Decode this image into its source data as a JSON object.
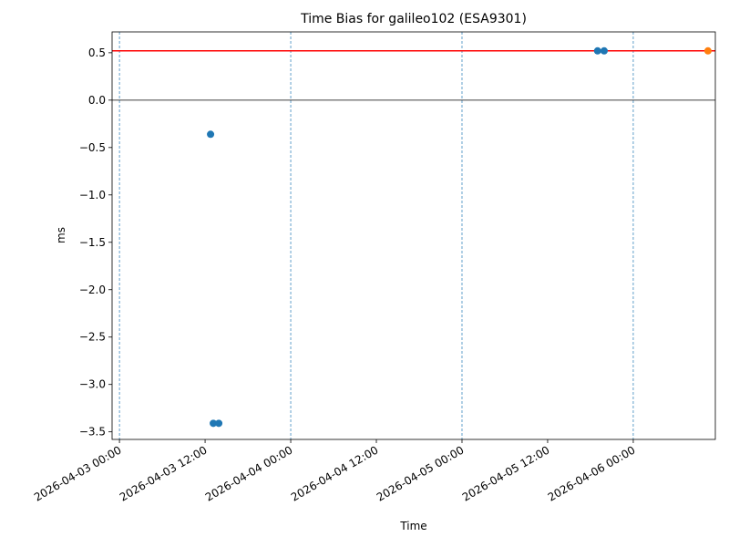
{
  "chart_data": {
    "type": "scatter",
    "title": "Time Bias for galileo102 (ESA9301)",
    "x_label": "Time",
    "y_label": "ms",
    "xlim": [
      "2026-04-02 22:58",
      "2026-04-06 11:30"
    ],
    "ylim": [
      -3.58,
      0.72
    ],
    "xticks": [
      "2026-04-03 00:00",
      "2026-04-03 12:00",
      "2026-04-04 00:00",
      "2026-04-04 12:00",
      "2026-04-05 00:00",
      "2026-04-05 12:00",
      "2026-04-06 00:00"
    ],
    "yticks": [
      0.5,
      {
        "value": 0,
        "label": "0.0"
      },
      {
        "value": -0.5,
        "label": "−0.5"
      },
      {
        "value": -1,
        "label": "−1.0"
      },
      {
        "value": -1.5,
        "label": "−1.5"
      },
      {
        "value": -2,
        "label": "−2.0"
      },
      {
        "value": -2.5,
        "label": "−2.5"
      },
      {
        "value": -3,
        "label": "−3.0"
      },
      {
        "value": -3.5,
        "label": "−3.5"
      }
    ],
    "series": [
      {
        "color": "#1f77b4",
        "x": [
          "2026-04-03 12:46",
          "2026-04-03 13:09",
          "2026-04-03 13:55",
          "2026-04-05 19:00",
          "2026-04-05 19:55"
        ],
        "values": [
          -0.36,
          -3.41,
          -3.41,
          0.52,
          0.52
        ]
      },
      {
        "color": "#ff7f0e",
        "x": [
          "2026-04-06 10:28"
        ],
        "values": [
          0.52
        ]
      }
    ],
    "hlines": [
      {
        "value": 0.52,
        "color": "#ff0000"
      },
      {
        "value": 0,
        "color": "#000000"
      }
    ],
    "vlines": {
      "color": "#1f77b4",
      "x": [
        "2026-04-03 00:00",
        "2026-04-04 00:00",
        "2026-04-05 00:00",
        "2026-04-06 00:00"
      ]
    }
  }
}
